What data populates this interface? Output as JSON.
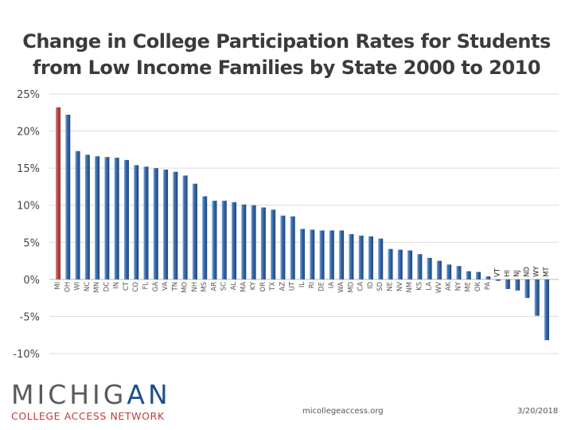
{
  "title": {
    "line1": "Change in College Participation Rates for Students",
    "line2": "from Low Income Families by State 2000 to 2010"
  },
  "logo": {
    "part1": "MICHIG",
    "part2": "AN",
    "subtitle": "COLLEGE ACCESS NETWORK"
  },
  "footer": {
    "url": "micollegeaccess.org",
    "date": "3/20/2018"
  },
  "colors": {
    "highlight": "#c0504d",
    "bar": "#2b5b99",
    "bar_light": "#6e9bd3"
  },
  "chart_data": {
    "type": "bar",
    "title": "Change in College Participation Rates for Students from Low Income Families by State 2000 to 2010",
    "xlabel": "",
    "ylabel": "",
    "ylim": [
      -10,
      25
    ],
    "yticks": [
      25,
      20,
      15,
      10,
      5,
      0,
      -5,
      -10
    ],
    "ytick_labels": [
      "25%",
      "20%",
      "15%",
      "10%",
      "5%",
      "0%",
      "-5%",
      "-10%"
    ],
    "grid": true,
    "highlight_category": "MI",
    "categories": [
      "MI",
      "OH",
      "WI",
      "NC",
      "MN",
      "DC",
      "IN",
      "CT",
      "CO",
      "FL",
      "GA",
      "VA",
      "TN",
      "MO",
      "NH",
      "MS",
      "AR",
      "SC",
      "AL",
      "MA",
      "KY",
      "OR",
      "TX",
      "AZ",
      "UT",
      "IL",
      "RI",
      "DE",
      "IA",
      "WA",
      "MD",
      "CA",
      "ID",
      "SD",
      "NE",
      "NV",
      "NM",
      "KS",
      "LA",
      "WV",
      "AK",
      "NY",
      "ME",
      "OK",
      "PA",
      "VT",
      "HI",
      "NJ",
      "ND",
      "WY",
      "MT"
    ],
    "values": [
      23.2,
      22.2,
      17.3,
      16.8,
      16.6,
      16.5,
      16.4,
      16.1,
      15.4,
      15.2,
      15.0,
      14.8,
      14.5,
      14.0,
      12.9,
      11.2,
      10.6,
      10.6,
      10.4,
      10.1,
      10.0,
      9.7,
      9.4,
      8.6,
      8.5,
      6.8,
      6.7,
      6.6,
      6.6,
      6.6,
      6.1,
      5.9,
      5.8,
      5.5,
      4.1,
      4.0,
      3.9,
      3.4,
      2.9,
      2.5,
      2.0,
      1.8,
      1.1,
      1.0,
      0.4,
      -0.2,
      -1.3,
      -1.5,
      -2.5,
      -4.9,
      -8.2
    ]
  }
}
